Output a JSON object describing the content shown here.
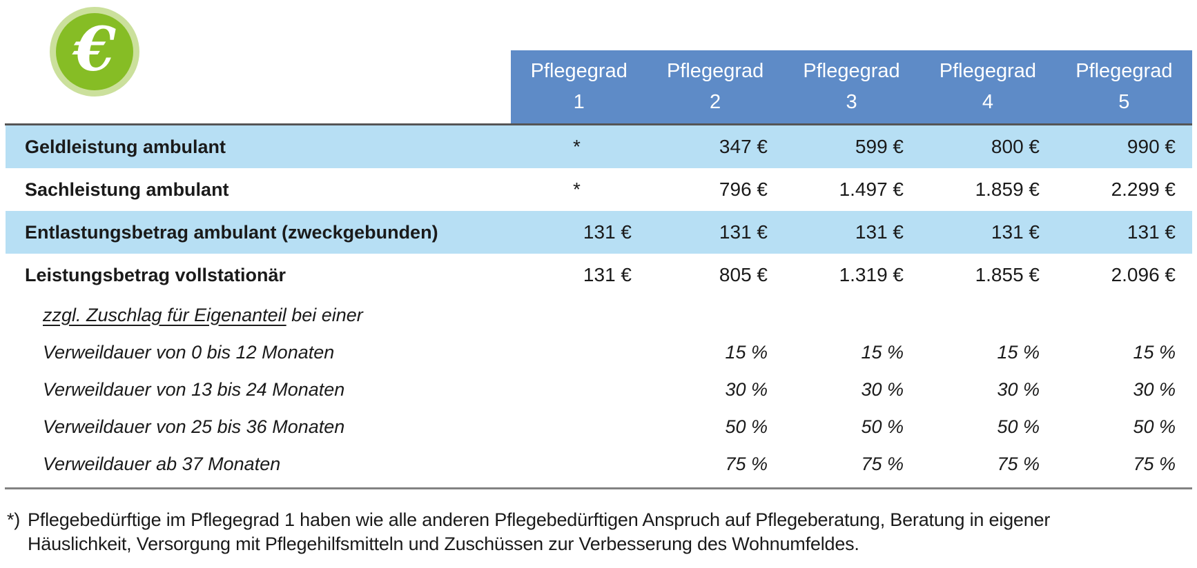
{
  "icon": {
    "glyph": "€"
  },
  "table": {
    "header": {
      "label": "Pflegegrad",
      "numbers": [
        "1",
        "2",
        "3",
        "4",
        "5"
      ]
    },
    "rows": [
      {
        "label": "Geldleistung ambulant",
        "values": [
          "*",
          "347 €",
          "599 €",
          "800 €",
          "990 €"
        ]
      },
      {
        "label": "Sachleistung ambulant",
        "values": [
          "*",
          "796 €",
          "1.497 €",
          "1.859 €",
          "2.299 €"
        ]
      },
      {
        "label": "Entlastungsbetrag ambulant (zweckgebunden)",
        "values": [
          "131 €",
          "131 €",
          "131 €",
          "131 €",
          "131 €"
        ]
      },
      {
        "label": "Leistungsbetrag vollstationär",
        "values": [
          "131 €",
          "805 €",
          "1.319 €",
          "1.855 €",
          "2.096 €"
        ]
      },
      {
        "label_underlined": "zzgl. Zuschlag für Eigenanteil",
        "label_tail": " bei einer",
        "values": [
          "",
          "",
          "",
          "",
          ""
        ]
      },
      {
        "label": "Verweildauer von 0 bis 12 Monaten",
        "values": [
          "",
          "15 %",
          "15 %",
          "15 %",
          "15 %"
        ]
      },
      {
        "label": "Verweildauer von 13 bis 24 Monaten",
        "values": [
          "",
          "30 %",
          "30 %",
          "30 %",
          "30 %"
        ]
      },
      {
        "label": "Verweildauer von 25 bis 36 Monaten",
        "values": [
          "",
          "50 %",
          "50 %",
          "50 %",
          "50 %"
        ]
      },
      {
        "label": "Verweildauer ab 37 Monaten",
        "values": [
          "",
          "75 %",
          "75 %",
          "75 %",
          "75 %"
        ]
      }
    ]
  },
  "footnote": {
    "marker": "*)",
    "line1": "Pflegebedürftige im Pflegegrad 1 haben wie alle anderen Pflegebedürftigen Anspruch auf Pflegeberatung, Beratung in eigener",
    "line2": "Häuslichkeit, Versorgung mit Pflegehilfsmitteln und Zuschüssen zur Verbesserung des Wohnumfeldes."
  },
  "colors": {
    "header_bg": "#5e8bc7",
    "header_text": "#ffffff",
    "row_shade": "#b7dff4",
    "rule_top": "#555555",
    "rule_bottom": "#828282",
    "icon_inner_green": "#86bd25",
    "icon_ring_green": "#cbe09c",
    "text": "#1a1a1a"
  }
}
